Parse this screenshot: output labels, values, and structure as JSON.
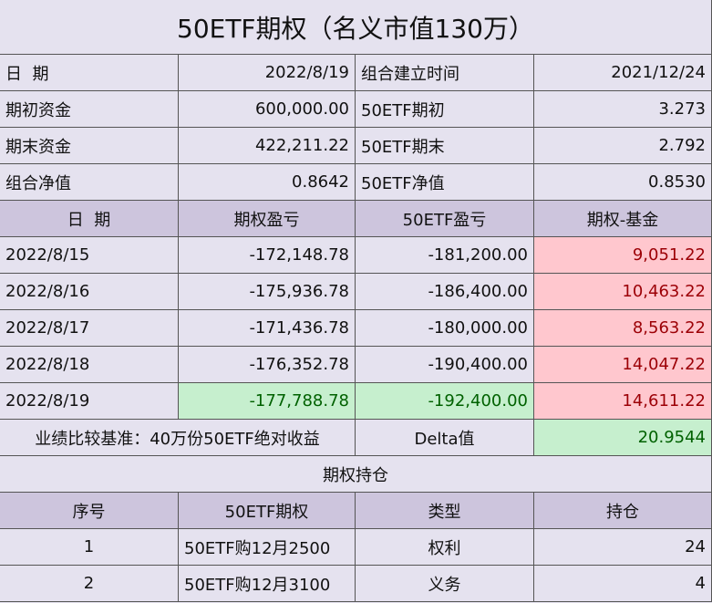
{
  "title": "50ETF期权（名义市值130万）",
  "summary": {
    "rows": [
      [
        "日  期",
        "2022/8/19",
        "组合建立时间",
        "2021/12/24"
      ],
      [
        "期初资金",
        "600,000.00",
        "50ETF期初",
        "3.273"
      ],
      [
        "期末资金",
        "422,211.22",
        "50ETF期末",
        "2.792"
      ],
      [
        "组合净值",
        "0.8642",
        "50ETF净值",
        "0.8530"
      ]
    ]
  },
  "pnl": {
    "header": [
      "日  期",
      "期权盈亏",
      "50ETF盈亏",
      "期权-基金"
    ],
    "rows": [
      [
        "2022/8/15",
        "-172,148.78",
        "-181,200.00",
        "9,051.22"
      ],
      [
        "2022/8/16",
        "-175,936.78",
        "-186,400.00",
        "10,463.22"
      ],
      [
        "2022/8/17",
        "-171,436.78",
        "-180,000.00",
        "8,563.22"
      ],
      [
        "2022/8/18",
        "-176,352.78",
        "-190,400.00",
        "14,047.22"
      ],
      [
        "2022/8/19",
        "-177,788.78",
        "-192,400.00",
        "14,611.22"
      ]
    ]
  },
  "benchmark": {
    "label": "业绩比较基准：40万份50ETF绝对收益",
    "delta_label": "Delta值",
    "delta_value": "20.9544"
  },
  "positions": {
    "title": "期权持仓",
    "header": [
      "序号",
      "50ETF期权",
      "类型",
      "持仓"
    ],
    "rows": [
      [
        "1",
        "50ETF购12月2500",
        "权利",
        "24"
      ],
      [
        "2",
        "50ETF购12月3100",
        "义务",
        "4"
      ]
    ]
  }
}
